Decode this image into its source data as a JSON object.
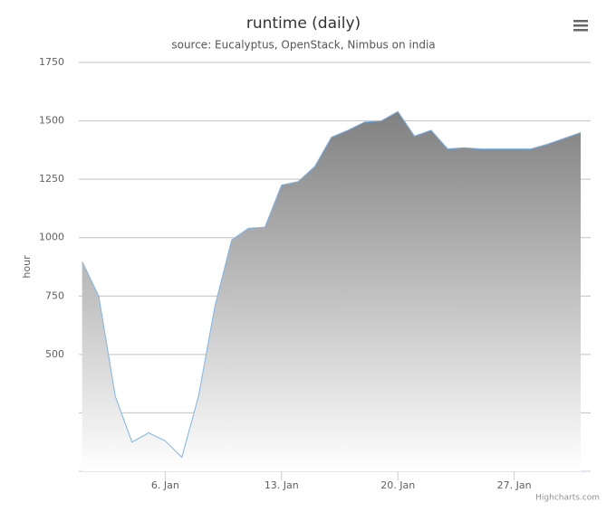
{
  "chart_data": {
    "type": "area",
    "title": "runtime (daily)",
    "subtitle": "source: Eucalyptus, OpenStack, Nimbus on india",
    "y_label": "hour",
    "credits": "Highcharts.com",
    "x": [
      1,
      2,
      3,
      4,
      5,
      6,
      7,
      8,
      9,
      10,
      11,
      12,
      13,
      14,
      15,
      16,
      17,
      18,
      19,
      20,
      21,
      22,
      23,
      24,
      25,
      26,
      27,
      28,
      29,
      30,
      31
    ],
    "series": [
      {
        "color": "#7cb5ec",
        "values": [
          898,
          750,
          320,
          125,
          165,
          130,
          60,
          320,
          710,
          990,
          1040,
          1045,
          1225,
          1240,
          1305,
          1430,
          1460,
          1495,
          1500,
          1540,
          1435,
          1460,
          1380,
          1385,
          1380,
          1380,
          1380,
          1380,
          1400,
          1425,
          1450
        ]
      }
    ],
    "xlim": [
      0.8,
      31.6
    ],
    "xticks": [
      {
        "value": 6,
        "label": "6. Jan"
      },
      {
        "value": 13,
        "label": "13. Jan"
      },
      {
        "value": 20,
        "label": "20. Jan"
      },
      {
        "value": 27,
        "label": "27. Jan"
      }
    ],
    "ylim": [
      0,
      1750
    ],
    "yticks": [
      {
        "value": 0,
        "label": null
      },
      {
        "value": 250,
        "label": null
      },
      500,
      750,
      1000,
      1250,
      1500,
      1750
    ],
    "grid": true
  }
}
